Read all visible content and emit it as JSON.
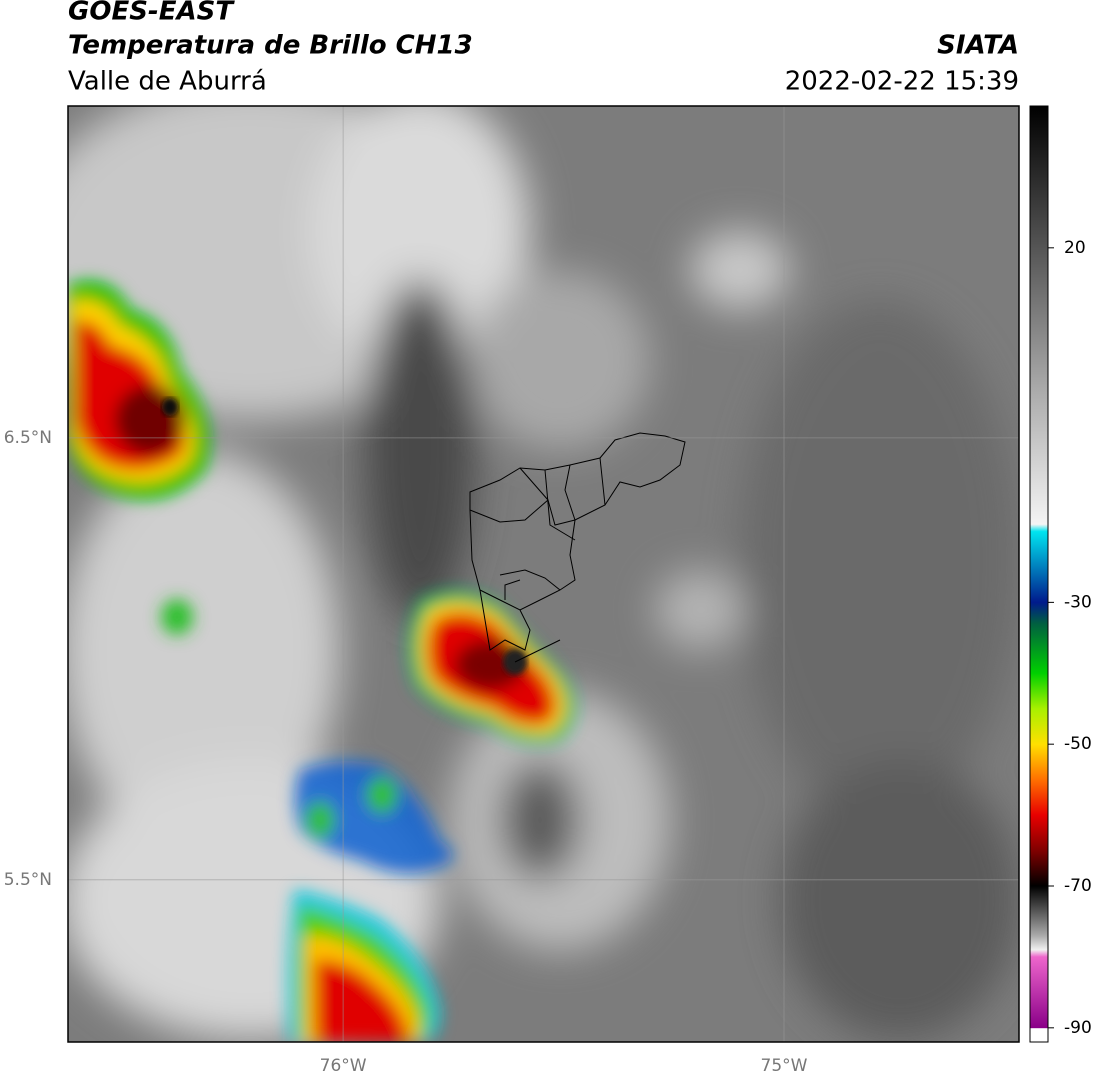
{
  "header": {
    "satellite": "GOES-EAST",
    "product": "Temperatura de Brillo CH13",
    "region": "Valle de Aburrá",
    "source": "SIATA",
    "timestamp": "2022-02-22 15:39"
  },
  "map": {
    "xlim": [
      -76.624,
      -74.467
    ],
    "ylim": [
      5.133,
      7.251
    ],
    "xticks": [
      {
        "value": -76,
        "label": "76°W"
      },
      {
        "value": -75,
        "label": "75°W"
      }
    ],
    "yticks": [
      {
        "value": 6.5,
        "label": "6.5°N"
      },
      {
        "value": 5.5,
        "label": "5.5°N"
      }
    ],
    "grid": true
  },
  "colorbar": {
    "clim": [
      -92,
      40
    ],
    "ticks": [
      20,
      -30,
      -50,
      -70,
      -90
    ],
    "stops": [
      {
        "value": 40,
        "color": "#000000"
      },
      {
        "value": 20,
        "color": "#555555"
      },
      {
        "value": 0,
        "color": "#aaaaaa"
      },
      {
        "value": -19,
        "color": "#f4f4f4"
      },
      {
        "value": -20,
        "color": "#00e5f0"
      },
      {
        "value": -30,
        "color": "#001a8c"
      },
      {
        "value": -33,
        "color": "#006040"
      },
      {
        "value": -40,
        "color": "#00d000"
      },
      {
        "value": -45,
        "color": "#a8f000"
      },
      {
        "value": -50,
        "color": "#ffe000"
      },
      {
        "value": -55,
        "color": "#ff7000"
      },
      {
        "value": -60,
        "color": "#e80000"
      },
      {
        "value": -65,
        "color": "#800000"
      },
      {
        "value": -70,
        "color": "#000000"
      },
      {
        "value": -77,
        "color": "#aaaaaa"
      },
      {
        "value": -79,
        "color": "#f0f0f0"
      },
      {
        "value": -80,
        "color": "#ee66cc"
      },
      {
        "value": -90,
        "color": "#8a0088"
      },
      {
        "value": -90.1,
        "color": "#ffffff"
      }
    ]
  }
}
